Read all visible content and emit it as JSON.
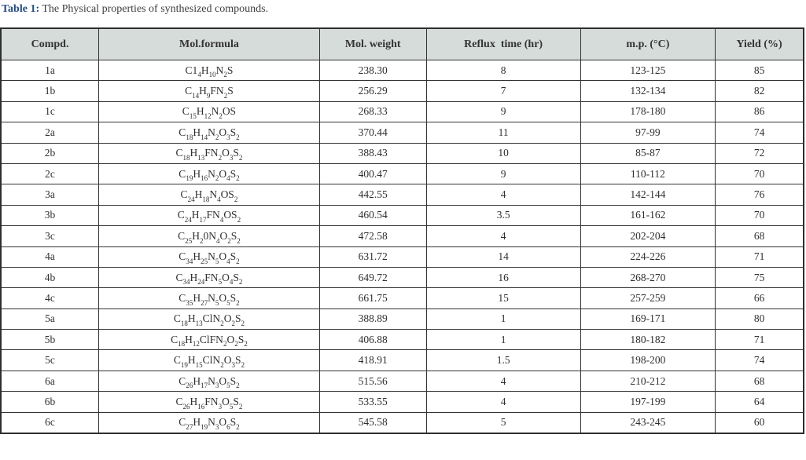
{
  "caption": {
    "label": "Table 1:",
    "text": " The Physical properties of synthesized compounds."
  },
  "colors": {
    "caption_accent": "#254a7d",
    "header_bg": "#d6dcd9",
    "border": "#333333",
    "text": "#2f2f2f"
  },
  "table": {
    "headers": [
      "Compd.",
      "Mol.formula",
      "Mol. weight",
      "Reflux  time (hr)",
      "m.p. (°C)",
      "Yield (%)"
    ],
    "col_widths_pct": [
      12.2,
      27.5,
      13.3,
      19.2,
      16.8,
      11.0
    ],
    "rows": [
      {
        "compd": "1a",
        "formula": "C1_{4}H_{10}N_{2}S",
        "mol_weight": "238.30",
        "reflux_time": "8",
        "mp": "123-125",
        "yield": "85"
      },
      {
        "compd": "1b",
        "formula": "C_{14}H_{9}FN_{2}S",
        "mol_weight": "256.29",
        "reflux_time": "7",
        "mp": "132-134",
        "yield": "82"
      },
      {
        "compd": "1c",
        "formula": "C_{15}H_{12}N_{2}OS",
        "mol_weight": "268.33",
        "reflux_time": "9",
        "mp": "178-180",
        "yield": "86"
      },
      {
        "compd": "2a",
        "formula": "C_{18}H_{14}N_{2}O_{3}S_{2}",
        "mol_weight": "370.44",
        "reflux_time": "11",
        "mp": "97-99",
        "yield": "74"
      },
      {
        "compd": "2b",
        "formula": "C_{18}H_{13}FN_{2}O_{3}S_{2}",
        "mol_weight": "388.43",
        "reflux_time": "10",
        "mp": "85-87",
        "yield": "72"
      },
      {
        "compd": "2c",
        "formula": "C_{19}H_{16}N_{2}O_{4}S_{2}",
        "mol_weight": "400.47",
        "reflux_time": "9",
        "mp": "110-112",
        "yield": "70"
      },
      {
        "compd": "3a",
        "formula": "C_{24}H_{18}N_{4}OS_{2}",
        "mol_weight": "442.55",
        "reflux_time": "4",
        "mp": "142-144",
        "yield": "76"
      },
      {
        "compd": "3b",
        "formula": "C_{24}H_{17}FN_{4}OS_{2}",
        "mol_weight": "460.54",
        "reflux_time": "3.5",
        "mp": "161-162",
        "yield": "70"
      },
      {
        "compd": "3c",
        "formula": "C_{25}H_{2}0N_{4}O_{2}S_{2}",
        "mol_weight": "472.58",
        "reflux_time": "4",
        "mp": "202-204",
        "yield": "68"
      },
      {
        "compd": "4a",
        "formula": "C_{34}H_{25}N_{5}O_{4}S_{2}",
        "mol_weight": "631.72",
        "reflux_time": "14",
        "mp": "224-226",
        "yield": "71"
      },
      {
        "compd": "4b",
        "formula": "C_{34}H_{24}FN_{5}O_{4}S_{2}",
        "mol_weight": "649.72",
        "reflux_time": "16",
        "mp": "268-270",
        "yield": "75"
      },
      {
        "compd": "4c",
        "formula": "C_{35}H_{27}N_{5}O_{5}S_{2}",
        "mol_weight": "661.75",
        "reflux_time": "15",
        "mp": "257-259",
        "yield": "66"
      },
      {
        "compd": "5a",
        "formula": "C_{18}H_{13}ClN_{2}O_{2}S_{2}",
        "mol_weight": "388.89",
        "reflux_time": "1",
        "mp": "169-171",
        "yield": "80"
      },
      {
        "compd": "5b",
        "formula": "C_{18}H_{12}ClFN_{2}O_{2}S_{2}",
        "mol_weight": "406.88",
        "reflux_time": "1",
        "mp": "180-182",
        "yield": "71"
      },
      {
        "compd": "5c",
        "formula": "C_{19}H_{15}ClN_{2}O_{3}S_{2}",
        "mol_weight": "418.91",
        "reflux_time": "1.5",
        "mp": "198-200",
        "yield": "74"
      },
      {
        "compd": "6a",
        "formula": "C_{26}H_{17}N_{3}O_{5}S_{2}",
        "mol_weight": "515.56",
        "reflux_time": "4",
        "mp": "210-212",
        "yield": "68"
      },
      {
        "compd": "6b",
        "formula": "C_{26}H_{16}FN_{3}O_{5}S_{2}",
        "mol_weight": "533.55",
        "reflux_time": "4",
        "mp": "197-199",
        "yield": "64"
      },
      {
        "compd": "6c",
        "formula": "C_{27}H_{19}N_{3}O_{6}S_{2}",
        "mol_weight": "545.58",
        "reflux_time": "5",
        "mp": "243-245",
        "yield": "60"
      }
    ]
  }
}
